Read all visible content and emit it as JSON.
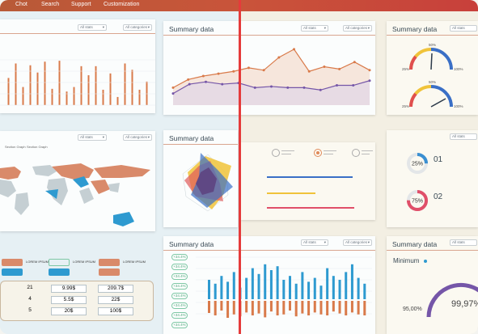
{
  "nav": {
    "items": [
      "Chot",
      "Search",
      "Support",
      "Customization"
    ]
  },
  "filters": {
    "all_stats": "All stats",
    "all_categories": "All categories"
  },
  "panels": {
    "summary_title": "Summary data",
    "minimum_label": "Minimum"
  },
  "table": {
    "rows": [
      [
        "21",
        "9.99$",
        "209.7$"
      ],
      [
        "4",
        "5.5$",
        "22$"
      ],
      [
        "5",
        "20$",
        "100$"
      ]
    ]
  },
  "gauges": {
    "top_value": "50%",
    "top_left": "25%",
    "top_right": "100%",
    "bottom_value": "50%",
    "bottom_left": "25%",
    "bottom_right": "100%"
  },
  "donuts": [
    {
      "value": "25%",
      "number": "01",
      "color": "#3a8fd1",
      "fraction": 0.25
    },
    {
      "value": "75%",
      "number": "02",
      "color": "#e04f69",
      "fraction": 0.75
    }
  ],
  "minimum": {
    "left": "95,00%",
    "right": "99,97%"
  },
  "badges": [
    "+34.4%",
    "+34.4%",
    "+34.4%",
    "+34.4%",
    "+34.4%",
    "+34.4%",
    "+34.4%",
    "+34.4%"
  ],
  "map_legend": [
    "Section Graph",
    "Section Graph"
  ],
  "map_items": [
    "LOREM IPSUM",
    "LOREM IPSUM",
    "LOREM IPSUM"
  ],
  "colors": {
    "accent": "#c9543a",
    "bar_orange": "#d97a4a",
    "bar_blue": "#2e9ad0",
    "line_purple": "#7556a8",
    "divider": "#e53b3b"
  },
  "icons": [
    "chevron-down-icon",
    "circle-icon"
  ],
  "chart_data": [
    {
      "type": "bar",
      "title": "",
      "values": [
        60,
        92,
        40,
        88,
        72,
        96,
        36,
        98,
        30,
        40,
        86,
        66,
        86,
        34,
        70,
        18,
        92,
        78,
        34,
        52
      ]
    },
    {
      "type": "line",
      "title": "Summary data",
      "series": [
        {
          "values": [
            30,
            44,
            50,
            54,
            58,
            64,
            60,
            82,
            96,
            58,
            66,
            62,
            74,
            60
          ]
        },
        {
          "values": [
            20,
            36,
            40,
            36,
            38,
            30,
            32,
            30,
            30,
            26,
            34,
            34,
            42
          ]
        }
      ]
    },
    {
      "type": "bar",
      "title": "Summary data",
      "series": [
        {
          "values": [
            50,
            40,
            60,
            45,
            70,
            30,
            55,
            80,
            65,
            90,
            75,
            85,
            50,
            60,
            40,
            70,
            45,
            55,
            35,
            80,
            60,
            50,
            70,
            90,
            55,
            40
          ]
        },
        {
          "values": [
            25,
            30,
            20,
            35,
            28,
            32,
            24,
            30,
            26,
            34,
            22,
            30,
            28,
            20,
            32,
            26,
            30,
            24,
            28,
            30,
            22,
            26,
            30,
            24,
            28,
            30
          ]
        }
      ]
    }
  ]
}
